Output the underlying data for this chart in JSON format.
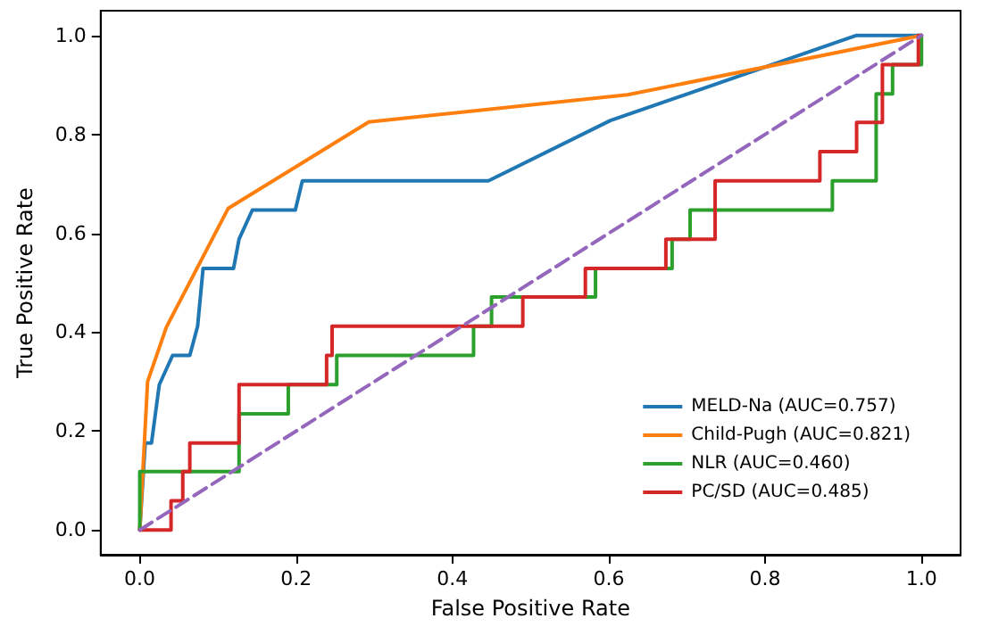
{
  "chart_data": {
    "type": "line",
    "xlabel": "False Positive Rate",
    "ylabel": "True Positive Rate",
    "xlim": [
      -0.05,
      1.05
    ],
    "ylim": [
      -0.05,
      1.05
    ],
    "xticks": [
      {
        "value": 0,
        "label": "0.0"
      },
      {
        "value": 0.2,
        "label": "0.2"
      },
      {
        "value": 0.4,
        "label": "0.4"
      },
      {
        "value": 0.6,
        "label": "0.6"
      },
      {
        "value": 0.8,
        "label": "0.8"
      },
      {
        "value": 1,
        "label": "1.0"
      }
    ],
    "yticks": [
      {
        "value": 0,
        "label": "0.0"
      },
      {
        "value": 0.2,
        "label": "0.2"
      },
      {
        "value": 0.4,
        "label": "0.4"
      },
      {
        "value": 0.6,
        "label": "0.6"
      },
      {
        "value": 0.8,
        "label": "0.8"
      },
      {
        "value": 1,
        "label": "1.0"
      }
    ],
    "grid": false,
    "legend": "bottom right",
    "marker": "none",
    "series": [
      {
        "name": "MELD-Na (AUC=0.757)",
        "color": "#1f77b4",
        "x": [
          0,
          0.007,
          0.015,
          0.02,
          0.025,
          0.042,
          0.064,
          0.074,
          0.081,
          0.12,
          0.127,
          0.144,
          0.199,
          0.208,
          0.446,
          0.602,
          0.917,
          1
        ],
        "values": [
          0,
          0.176,
          0.176,
          0.235,
          0.294,
          0.353,
          0.353,
          0.412,
          0.529,
          0.529,
          0.588,
          0.647,
          0.647,
          0.706,
          0.706,
          0.828,
          1,
          1
        ]
      },
      {
        "name": "Child-Pugh (AUC=0.821)",
        "color": "#ff7f0e",
        "x": [
          0,
          0.01,
          0.034,
          0.113,
          0.293,
          0.624,
          1
        ],
        "values": [
          0,
          0.3,
          0.41,
          0.65,
          0.825,
          0.88,
          1
        ]
      },
      {
        "name": "NLR (AUC=0.460)",
        "color": "#2ca02c",
        "x": [
          0,
          0,
          0.127,
          0.127,
          0.19,
          0.19,
          0.252,
          0.252,
          0.427,
          0.427,
          0.45,
          0.45,
          0.583,
          0.583,
          0.681,
          0.681,
          0.704,
          0.704,
          0.886,
          0.886,
          0.942,
          0.942,
          0.963,
          0.963,
          1,
          1
        ],
        "values": [
          0,
          0.118,
          0.118,
          0.235,
          0.235,
          0.294,
          0.294,
          0.353,
          0.353,
          0.412,
          0.412,
          0.471,
          0.471,
          0.529,
          0.529,
          0.588,
          0.588,
          0.647,
          0.647,
          0.706,
          0.706,
          0.882,
          0.882,
          0.941,
          0.941,
          1
        ]
      },
      {
        "name": "PC/SD (AUC=0.485)",
        "color": "#d62728",
        "x": [
          0,
          0.04,
          0.04,
          0.055,
          0.055,
          0.064,
          0.064,
          0.127,
          0.127,
          0.239,
          0.239,
          0.246,
          0.246,
          0.49,
          0.49,
          0.57,
          0.57,
          0.673,
          0.673,
          0.736,
          0.736,
          0.87,
          0.87,
          0.917,
          0.917,
          0.95,
          0.95,
          0.996,
          0.996,
          1
        ],
        "values": [
          0,
          0,
          0.059,
          0.059,
          0.118,
          0.118,
          0.176,
          0.176,
          0.294,
          0.294,
          0.353,
          0.353,
          0.412,
          0.412,
          0.471,
          0.471,
          0.529,
          0.529,
          0.588,
          0.588,
          0.706,
          0.706,
          0.765,
          0.765,
          0.824,
          0.824,
          0.941,
          0.941,
          1,
          1
        ]
      },
      {
        "color": "#9467bd",
        "line_style": "dashed",
        "x": [
          0,
          1
        ],
        "values": [
          0,
          1
        ]
      }
    ]
  }
}
